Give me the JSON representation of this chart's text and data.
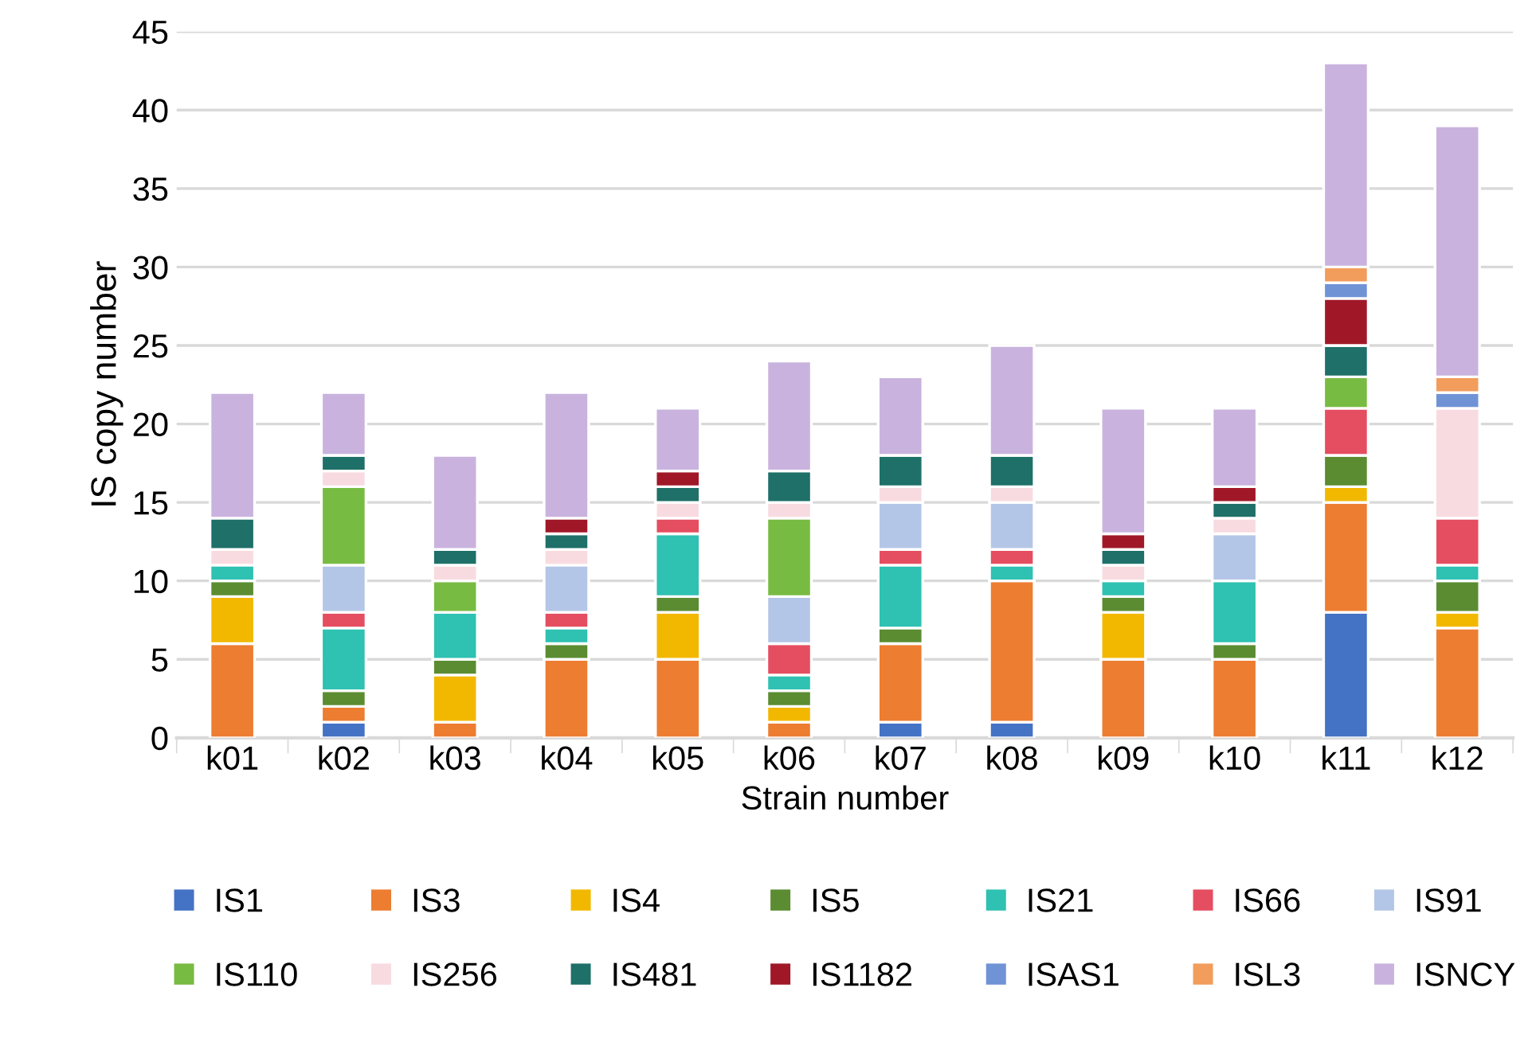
{
  "chart_data": {
    "type": "bar",
    "stacked": true,
    "ylabel": "IS copy number",
    "xlabel": "Strain number",
    "categories": [
      "k01",
      "k02",
      "k03",
      "k04",
      "k05",
      "k06",
      "k07",
      "k08",
      "k09",
      "k10",
      "k11",
      "k12"
    ],
    "ylim": [
      0,
      45
    ],
    "yticks": [
      0,
      5,
      10,
      15,
      20,
      25,
      30,
      35,
      40,
      45
    ],
    "grid": "y",
    "legend": "bottom",
    "series": [
      {
        "name": "IS1",
        "color": "#4472c4",
        "values": [
          null,
          1,
          null,
          null,
          null,
          null,
          1,
          1,
          null,
          null,
          8,
          null
        ]
      },
      {
        "name": "IS3",
        "color": "#ed7d31",
        "values": [
          6,
          1,
          1,
          5,
          5,
          1,
          5,
          9,
          5,
          5,
          7,
          7
        ]
      },
      {
        "name": "IS4",
        "color": "#f2b800",
        "values": [
          3,
          null,
          3,
          null,
          3,
          1,
          null,
          null,
          3,
          null,
          1,
          1
        ]
      },
      {
        "name": "IS5",
        "color": "#5b8c32",
        "values": [
          1,
          1,
          1,
          1,
          1,
          1,
          1,
          null,
          1,
          1,
          2,
          2
        ]
      },
      {
        "name": "IS21",
        "color": "#2fc1b2",
        "values": [
          1,
          4,
          3,
          1,
          4,
          1,
          4,
          1,
          1,
          4,
          null,
          1
        ]
      },
      {
        "name": "IS66",
        "color": "#e54e60",
        "values": [
          null,
          1,
          null,
          1,
          1,
          2,
          1,
          1,
          null,
          null,
          3,
          3
        ]
      },
      {
        "name": "IS91",
        "color": "#b4c6e7",
        "values": [
          null,
          3,
          null,
          3,
          null,
          3,
          3,
          3,
          null,
          3,
          null,
          null
        ]
      },
      {
        "name": "IS110",
        "color": "#78bb42",
        "values": [
          null,
          5,
          2,
          null,
          null,
          5,
          null,
          null,
          null,
          null,
          2,
          null
        ]
      },
      {
        "name": "IS256",
        "color": "#f8dbe0",
        "values": [
          1,
          1,
          1,
          1,
          1,
          1,
          1,
          1,
          1,
          1,
          null,
          7
        ]
      },
      {
        "name": "IS481",
        "color": "#1e7068",
        "values": [
          2,
          1,
          1,
          1,
          1,
          2,
          2,
          2,
          1,
          1,
          2,
          null
        ]
      },
      {
        "name": "IS1182",
        "color": "#a01828",
        "values": [
          null,
          null,
          null,
          1,
          1,
          null,
          null,
          null,
          1,
          1,
          3,
          null
        ]
      },
      {
        "name": "ISAS1",
        "color": "#6f93d5",
        "values": [
          null,
          null,
          null,
          null,
          null,
          null,
          null,
          null,
          null,
          null,
          1,
          1
        ]
      },
      {
        "name": "ISL3",
        "color": "#f29d5c",
        "values": [
          null,
          null,
          null,
          null,
          null,
          null,
          null,
          null,
          null,
          null,
          1,
          1
        ]
      },
      {
        "name": "ISNCY",
        "color": "#c9b3de",
        "values": [
          8,
          4,
          6,
          8,
          4,
          7,
          5,
          7,
          8,
          5,
          13,
          16
        ]
      }
    ]
  }
}
